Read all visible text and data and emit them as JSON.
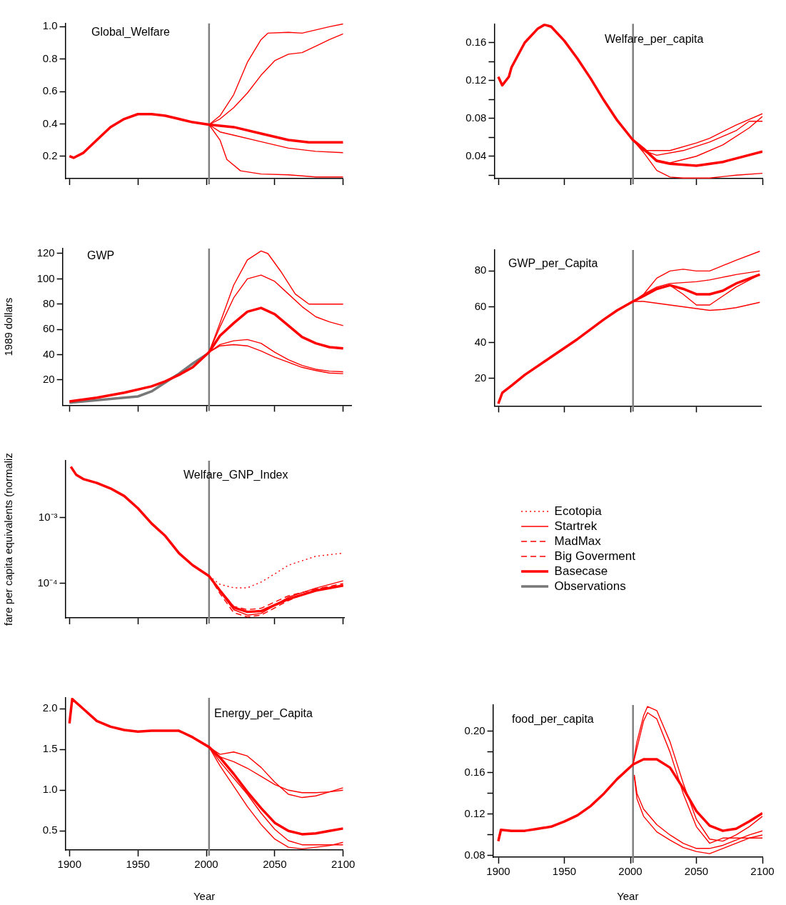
{
  "chart_data": [
    {
      "type": "line",
      "title": "Global_Welfare",
      "xlim": [
        1897,
        2100
      ],
      "xticks": [
        1900,
        1950,
        2000,
        2050,
        2100
      ],
      "ylim": [
        0.062,
        1.02
      ],
      "yticks": [
        0.2,
        0.4,
        0.6,
        0.8,
        {
          "value": 1,
          "label": "1.0"
        }
      ],
      "tick_labels": "y",
      "grid": false,
      "legend": false,
      "ref_lines": [
        {
          "axis": "x",
          "value": 2002,
          "color": "#808080"
        }
      ],
      "series": [
        {
          "color": "#ff0000",
          "x": [
            1900,
            1903,
            1910,
            1920,
            1930,
            1940,
            1950,
            1960,
            1970,
            1980,
            1990,
            2002,
            2020,
            2040,
            2060,
            2075,
            2100
          ],
          "values": [
            0.2,
            0.19,
            0.22,
            0.3,
            0.38,
            0.43,
            0.46,
            0.46,
            0.45,
            0.43,
            0.41,
            0.395,
            0.38,
            0.34,
            0.3,
            0.286,
            0.286
          ]
        },
        {
          "color": "#ff0000",
          "x": [
            2002,
            2010,
            2020,
            2030,
            2040,
            2045,
            2060,
            2070,
            2080,
            2090,
            2100
          ],
          "values": [
            0.395,
            0.45,
            0.58,
            0.78,
            0.92,
            0.96,
            0.965,
            0.96,
            0.98,
            1.0,
            1.017
          ]
        },
        {
          "color": "#ff0000",
          "x": [
            2002,
            2010,
            2020,
            2030,
            2040,
            2050,
            2060,
            2070,
            2080,
            2090,
            2100
          ],
          "values": [
            0.395,
            0.43,
            0.5,
            0.59,
            0.7,
            0.79,
            0.83,
            0.84,
            0.88,
            0.92,
            0.956
          ]
        },
        {
          "color": "#ff0000",
          "x": [
            2002,
            2010,
            2020,
            2040,
            2060,
            2080,
            2100
          ],
          "values": [
            0.395,
            0.35,
            0.33,
            0.29,
            0.25,
            0.23,
            0.222
          ]
        },
        {
          "color": "#ff0000",
          "x": [
            2002,
            2010,
            2015,
            2025,
            2040,
            2060,
            2080,
            2100
          ],
          "values": [
            0.395,
            0.3,
            0.18,
            0.11,
            0.09,
            0.085,
            0.072,
            0.072
          ]
        }
      ]
    },
    {
      "type": "line",
      "title": "Welfare_per_capita",
      "xlim": [
        1897,
        2100
      ],
      "xticks": [
        1900,
        1950,
        2000,
        2050,
        2100
      ],
      "ylim": [
        0.0164,
        0.18
      ],
      "yticks": [
        {
          "value": 0.02,
          "label": null
        },
        0.04,
        {
          "value": 0.06,
          "label": null
        },
        0.08,
        {
          "value": 0.1,
          "label": null
        },
        0.12,
        {
          "value": 0.14,
          "label": null
        },
        0.16
      ],
      "tick_labels": "y",
      "grid": false,
      "legend": false,
      "ref_lines": [
        {
          "axis": "x",
          "value": 2002,
          "color": "#808080"
        }
      ],
      "series": [
        {
          "color": "#ff0000",
          "x": [
            1900,
            1903,
            1908,
            1910,
            1920,
            1930,
            1935,
            1940,
            1950,
            1960,
            1970,
            1980,
            1990,
            2002,
            2010,
            2020,
            2030,
            2050,
            2070,
            2100
          ],
          "values": [
            0.124,
            0.115,
            0.124,
            0.134,
            0.16,
            0.175,
            0.179,
            0.177,
            0.162,
            0.143,
            0.122,
            0.099,
            0.078,
            0.057,
            0.048,
            0.035,
            0.032,
            0.03,
            0.034,
            0.045
          ]
        },
        {
          "color": "#ff0000",
          "x": [
            2002,
            2010,
            2030,
            2050,
            2060,
            2080,
            2100
          ],
          "values": [
            0.057,
            0.046,
            0.046,
            0.054,
            0.059,
            0.073,
            0.085
          ]
        },
        {
          "color": "#ff0000",
          "x": [
            2002,
            2010,
            2020,
            2040,
            2060,
            2080,
            2090,
            2100
          ],
          "values": [
            0.057,
            0.046,
            0.041,
            0.046,
            0.055,
            0.067,
            0.077,
            0.077
          ]
        },
        {
          "color": "#ff0000",
          "x": [
            2002,
            2010,
            2020,
            2030,
            2050,
            2070,
            2090,
            2100
          ],
          "values": [
            0.057,
            0.046,
            0.036,
            0.033,
            0.04,
            0.052,
            0.07,
            0.082
          ]
        },
        {
          "color": "#ff0000",
          "x": [
            2002,
            2010,
            2020,
            2030,
            2040,
            2060,
            2080,
            2100
          ],
          "values": [
            0.057,
            0.044,
            0.025,
            0.018,
            0.017,
            0.017,
            0.02,
            0.022
          ]
        }
      ]
    },
    {
      "type": "line",
      "title": "GWP",
      "ylabel": "1989 dollars",
      "xlim": [
        1895,
        2106
      ],
      "xticks": [
        1900,
        1950,
        2000,
        2050,
        2100
      ],
      "ylim": [
        0,
        124
      ],
      "yticks": [
        20,
        40,
        60,
        80,
        100,
        120
      ],
      "tick_labels": "y",
      "grid": false,
      "legend": false,
      "ref_lines": [
        {
          "axis": "x",
          "value": 2002,
          "color": "#808080"
        }
      ],
      "series": [
        {
          "color": "#ff0000",
          "x": [
            1900,
            1920,
            1940,
            1960,
            1970,
            1980,
            1990,
            2002,
            2010,
            2020,
            2030,
            2040,
            2050,
            2060,
            2070,
            2080,
            2090,
            2100
          ],
          "values": [
            3,
            6,
            10,
            15,
            19,
            24,
            30,
            42,
            55,
            65,
            74,
            77,
            72,
            63,
            54,
            49,
            46,
            45
          ]
        },
        {
          "color": "#ff0000",
          "x": [
            2002,
            2010,
            2020,
            2030,
            2040,
            2045,
            2055,
            2065,
            2075,
            2100
          ],
          "values": [
            42,
            65,
            95,
            115,
            122,
            120,
            105,
            88,
            80,
            80
          ]
        },
        {
          "color": "#ff0000",
          "x": [
            2002,
            2010,
            2020,
            2030,
            2040,
            2050,
            2060,
            2070,
            2080,
            2090,
            2100
          ],
          "values": [
            42,
            62,
            85,
            100,
            103,
            98,
            88,
            78,
            70,
            66,
            63
          ]
        },
        {
          "color": "#ff0000",
          "x": [
            2002,
            2010,
            2020,
            2030,
            2040,
            2050,
            2060,
            2070,
            2080,
            2090,
            2100
          ],
          "values": [
            42,
            48,
            51,
            52,
            49,
            42,
            36,
            31.5,
            28.5,
            27,
            26.5
          ]
        },
        {
          "color": "#ff0000",
          "x": [
            2002,
            2010,
            2020,
            2030,
            2040,
            2050,
            2060,
            2070,
            2080,
            2090,
            2100
          ],
          "values": [
            42,
            47,
            48,
            47,
            43,
            38,
            34,
            30,
            27.5,
            25.5,
            25
          ]
        },
        {
          "color": "#777777",
          "x": [
            1900,
            1920,
            1940,
            1950,
            1960,
            1970,
            1980,
            1990,
            2000
          ],
          "values": [
            2,
            4,
            6,
            7,
            11,
            18,
            25,
            33,
            40
          ]
        }
      ]
    },
    {
      "type": "line",
      "title": "GWP_per_Capita",
      "xlim": [
        1897,
        2099
      ],
      "xticks": [
        1900,
        1950,
        2000,
        2050
      ],
      "ylim": [
        4.7,
        91.7
      ],
      "yticks": [
        20,
        40,
        60,
        80
      ],
      "tick_labels": "y",
      "grid": false,
      "legend": false,
      "ref_lines": [
        {
          "axis": "x",
          "value": 2002,
          "color": "#808080"
        }
      ],
      "series": [
        {
          "color": "#ff0000",
          "x": [
            1900,
            1903,
            1910,
            1920,
            1940,
            1960,
            1980,
            1990,
            2002,
            2010,
            2020,
            2030,
            2040,
            2050,
            2060,
            2070,
            2080,
            2098
          ],
          "values": [
            6,
            12,
            16,
            22,
            32,
            42,
            53,
            58,
            63,
            66,
            70,
            72,
            70,
            67,
            67,
            69,
            73,
            78
          ]
        },
        {
          "color": "#ff0000",
          "x": [
            2002,
            2010,
            2020,
            2030,
            2040,
            2050,
            2060,
            2070,
            2080,
            2098
          ],
          "values": [
            63,
            67,
            76,
            80,
            81,
            80,
            80,
            83,
            86,
            91
          ]
        },
        {
          "color": "#ff0000",
          "x": [
            2002,
            2010,
            2020,
            2030,
            2040,
            2050,
            2060,
            2070,
            2080,
            2098
          ],
          "values": [
            63,
            67,
            71,
            73,
            73.5,
            74,
            75,
            76.5,
            78,
            80
          ]
        },
        {
          "color": "#ff0000",
          "x": [
            2002,
            2010,
            2020,
            2030,
            2040,
            2050,
            2060,
            2070,
            2080,
            2098
          ],
          "values": [
            63,
            66,
            70,
            72,
            67,
            61,
            61,
            66,
            71,
            78
          ]
        },
        {
          "color": "#ff0000",
          "x": [
            2002,
            2010,
            2020,
            2030,
            2040,
            2050,
            2060,
            2070,
            2080,
            2098
          ],
          "values": [
            63,
            63,
            62,
            61,
            60,
            59,
            58,
            58.5,
            59.5,
            62.5
          ]
        }
      ]
    },
    {
      "type": "line",
      "title": "Welfare_GNP_Index",
      "ylabel": "fare per capita equivalents (normaliz",
      "log": "y",
      "xlim": [
        1897,
        2101
      ],
      "xticks": [
        1900,
        1950,
        2000,
        2050,
        2100
      ],
      "ylim": [
        3e-05,
        0.0074
      ],
      "yticks": [
        {
          "value": 0.0001,
          "label": "10⁻⁴"
        },
        {
          "value": 0.001,
          "label": "10⁻³"
        }
      ],
      "tick_labels": "y",
      "grid": false,
      "legend": "right",
      "ref_lines": [
        {
          "axis": "x",
          "value": 2002,
          "color": "#808080"
        }
      ],
      "series": [
        {
          "name": "Ecotopia",
          "color": "#ff0000",
          "line_style": "dotted",
          "x": [
            2002,
            2010,
            2020,
            2030,
            2040,
            2050,
            2060,
            2080,
            2100
          ],
          "values": [
            0.00013,
            9.7e-05,
            8.6e-05,
            8.6e-05,
            0.000105,
            0.00014,
            0.00019,
            0.00026,
            0.00029
          ]
        },
        {
          "name": "Startrek",
          "color": "#ff0000",
          "line_style": "solid",
          "x": [
            2002,
            2010,
            2020,
            2030,
            2040,
            2060,
            2080,
            2100
          ],
          "values": [
            0.00013,
            7.5e-05,
            4e-05,
            3.3e-05,
            3.5e-05,
            6.2e-05,
            8.5e-05,
            0.00011
          ]
        },
        {
          "name": "MadMax",
          "color": "#ff0000",
          "line_style": "dashed",
          "x": [
            2002,
            2010,
            2020,
            2030,
            2040,
            2060,
            2080,
            2100
          ],
          "values": [
            0.00013,
            7e-05,
            3.6e-05,
            3.1e-05,
            3.3e-05,
            5.5e-05,
            8.2e-05,
            0.0001
          ]
        },
        {
          "name": "Big Goverment",
          "color": "#ff0000",
          "line_style": "dashed",
          "x": [
            2002,
            2010,
            2020,
            2030,
            2040,
            2060,
            2080,
            2100
          ],
          "values": [
            0.00013,
            8e-05,
            4.5e-05,
            4e-05,
            4.2e-05,
            6.5e-05,
            8.2e-05,
            9.5e-05
          ]
        },
        {
          "name": "Basecase",
          "color": "#ff0000",
          "line_style": "solid",
          "x": [
            1901,
            1905,
            1910,
            1920,
            1930,
            1940,
            1950,
            1960,
            1970,
            1980,
            1990,
            2002,
            2010,
            2020,
            2030,
            2040,
            2050,
            2060,
            2080,
            2100
          ],
          "values": [
            0.006,
            0.0045,
            0.0039,
            0.0034,
            0.0028,
            0.00215,
            0.0014,
            0.00082,
            0.00053,
            0.00029,
            0.00019,
            0.00013,
            7.8e-05,
            4.3e-05,
            3.7e-05,
            3.8e-05,
            4.7e-05,
            5.8e-05,
            7.8e-05,
            9.3e-05
          ]
        },
        {
          "name": "Observations",
          "color": "#777777",
          "line_style": "solid"
        }
      ]
    },
    {
      "type": "line",
      "title": "Energy_per_Capita",
      "xlabel": "Year",
      "xlim": [
        1897,
        2100
      ],
      "xticks": [
        1900,
        1950,
        2000,
        2050,
        2100
      ],
      "ylim": [
        0.266,
        2.134
      ],
      "yticks": [
        0.5,
        {
          "value": 1,
          "label": "1.0"
        },
        1.5,
        {
          "value": 2,
          "label": "2.0"
        }
      ],
      "grid": false,
      "legend": false,
      "ref_lines": [
        {
          "axis": "x",
          "value": 2002,
          "color": "#808080"
        }
      ],
      "series": [
        {
          "color": "#ff0000",
          "x": [
            1900,
            1902,
            1910,
            1920,
            1930,
            1940,
            1950,
            1960,
            1980,
            1990,
            2002,
            2010,
            2020,
            2030,
            2040,
            2050,
            2060,
            2070,
            2080,
            2090,
            2100
          ],
          "values": [
            1.82,
            2.12,
            2.0,
            1.85,
            1.78,
            1.74,
            1.72,
            1.73,
            1.73,
            1.65,
            1.53,
            1.4,
            1.2,
            0.98,
            0.78,
            0.6,
            0.5,
            0.46,
            0.47,
            0.5,
            0.53
          ]
        },
        {
          "color": "#ff0000",
          "x": [
            2002,
            2010,
            2020,
            2030,
            2040,
            2050,
            2060,
            2070,
            2080,
            2090,
            2100
          ],
          "values": [
            1.53,
            1.44,
            1.47,
            1.42,
            1.28,
            1.1,
            0.95,
            0.91,
            0.93,
            0.98,
            1.03
          ]
        },
        {
          "color": "#ff0000",
          "x": [
            2002,
            2010,
            2020,
            2030,
            2040,
            2050,
            2060,
            2070,
            2080,
            2090,
            2100
          ],
          "values": [
            1.53,
            1.41,
            1.35,
            1.27,
            1.17,
            1.07,
            1.0,
            0.97,
            0.97,
            0.98,
            1.0
          ]
        },
        {
          "color": "#ff0000",
          "x": [
            2002,
            2010,
            2020,
            2030,
            2040,
            2050,
            2060,
            2070,
            2080,
            2090,
            2100
          ],
          "values": [
            1.53,
            1.3,
            1.05,
            0.8,
            0.58,
            0.4,
            0.3,
            0.28,
            0.3,
            0.32,
            0.36
          ]
        },
        {
          "color": "#ff0000",
          "x": [
            2002,
            2010,
            2020,
            2030,
            2040,
            2050,
            2060,
            2070,
            2080,
            2090,
            2100
          ],
          "values": [
            1.53,
            1.35,
            1.15,
            0.95,
            0.72,
            0.52,
            0.38,
            0.33,
            0.33,
            0.33,
            0.33
          ]
        }
      ]
    },
    {
      "type": "line",
      "title": "food_per_capita",
      "xlabel": "Year",
      "xlim": [
        1896,
        2100
      ],
      "xticks": [
        1900,
        1950,
        2000,
        2050,
        2100
      ],
      "ylim": [
        0.0786,
        0.2254
      ],
      "yticks": [
        0.08,
        {
          "value": 0.1,
          "label": null
        },
        0.12,
        {
          "value": 0.14,
          "label": null
        },
        0.16,
        {
          "value": 0.18,
          "label": null
        },
        {
          "value": 0.2,
          "label": "0.20"
        }
      ],
      "grid": false,
      "legend": false,
      "ref_lines": [
        {
          "axis": "x",
          "value": 2002,
          "color": "#808080"
        }
      ],
      "series": [
        {
          "color": "#ff0000",
          "x": [
            1900,
            1902,
            1910,
            1920,
            1930,
            1940,
            1950,
            1960,
            1970,
            1980,
            1990,
            2002,
            2010,
            2020,
            2030,
            2040,
            2050,
            2060,
            2070,
            2080,
            2090,
            2100
          ],
          "values": [
            0.094,
            0.105,
            0.104,
            0.104,
            0.106,
            0.108,
            0.113,
            0.119,
            0.128,
            0.14,
            0.154,
            0.168,
            0.173,
            0.173,
            0.165,
            0.145,
            0.123,
            0.109,
            0.104,
            0.106,
            0.113,
            0.121
          ]
        },
        {
          "color": "#ff0000",
          "x": [
            2002,
            2005,
            2010,
            2013,
            2020,
            2030,
            2040,
            2050,
            2060,
            2070,
            2080,
            2090,
            2100
          ],
          "values": [
            0.168,
            0.19,
            0.215,
            0.224,
            0.22,
            0.19,
            0.15,
            0.115,
            0.096,
            0.094,
            0.1,
            0.108,
            0.118
          ]
        },
        {
          "color": "#ff0000",
          "x": [
            2002,
            2010,
            2013,
            2020,
            2030,
            2040,
            2050,
            2060,
            2070,
            2080,
            2100
          ],
          "values": [
            0.168,
            0.21,
            0.218,
            0.212,
            0.18,
            0.14,
            0.108,
            0.092,
            0.097,
            0.097,
            0.097
          ]
        },
        {
          "color": "#ff0000",
          "x": [
            2003,
            2005,
            2010,
            2020,
            2030,
            2040,
            2050,
            2060,
            2070,
            2080,
            2090,
            2100
          ],
          "values": [
            0.158,
            0.14,
            0.125,
            0.11,
            0.1,
            0.092,
            0.087,
            0.087,
            0.09,
            0.095,
            0.1,
            0.104
          ]
        },
        {
          "color": "#ff0000",
          "x": [
            2003,
            2005,
            2010,
            2020,
            2030,
            2040,
            2050,
            2060,
            2070,
            2080,
            2090,
            2100
          ],
          "values": [
            0.156,
            0.135,
            0.118,
            0.103,
            0.095,
            0.088,
            0.084,
            0.082,
            0.087,
            0.092,
            0.097,
            0.1
          ]
        }
      ]
    }
  ]
}
